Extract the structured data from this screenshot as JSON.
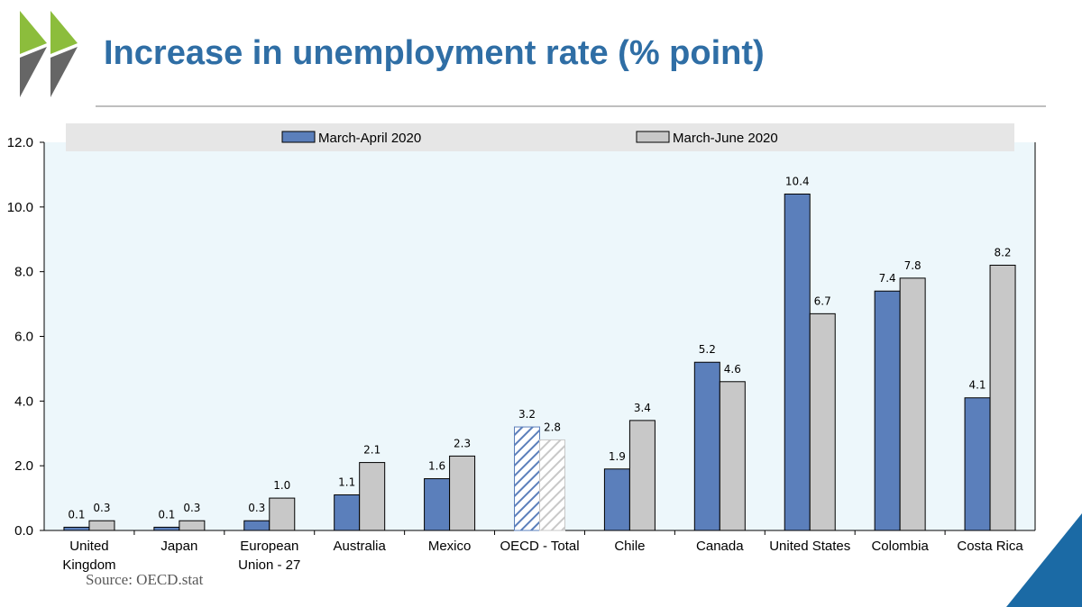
{
  "slide": {
    "title": "Increase in unemployment rate (% point)",
    "source": "Source: OECD.stat"
  },
  "colors": {
    "title": "#2f6ea5",
    "series_1": "#5b7fbb",
    "series_2": "#c8c8c8",
    "plot_background": "#edf7fb",
    "legend_background": "#e6e6e6",
    "logo_light": "#8cbd3c",
    "logo_dark": "#666666",
    "corner_accent": "#1b6aa5"
  },
  "icons": {
    "logo": "oecd-double-chevron-logo",
    "corner": "blue-corner-triangle"
  },
  "chart_data": {
    "type": "bar",
    "title": "Increase in unemployment rate (% point)",
    "xlabel": "",
    "ylabel": "",
    "ylim": [
      0,
      12
    ],
    "yticks": [
      "0.0",
      "2.0",
      "4.0",
      "6.0",
      "8.0",
      "10.0",
      "12.0"
    ],
    "grid": false,
    "legend_position": "top",
    "categories": [
      [
        "United",
        "Kingdom"
      ],
      [
        "Japan"
      ],
      [
        "European",
        "Union - 27"
      ],
      [
        "Australia"
      ],
      [
        "Mexico"
      ],
      [
        "OECD - Total"
      ],
      [
        "Chile"
      ],
      [
        "Canada"
      ],
      [
        "United States"
      ],
      [
        "Colombia"
      ],
      [
        "Costa Rica"
      ]
    ],
    "highlight_category": "OECD - Total",
    "series": [
      {
        "name": "March-April 2020",
        "values": [
          0.1,
          0.1,
          0.3,
          1.1,
          1.6,
          3.2,
          1.9,
          5.2,
          10.4,
          7.4,
          4.1
        ],
        "labels": [
          "0.1",
          "0.1",
          "0.3",
          "1.1",
          "1.6",
          "3.2",
          "1.9",
          "5.2",
          "10.4",
          "7.4",
          "4.1"
        ]
      },
      {
        "name": "March-June 2020",
        "values": [
          0.3,
          0.3,
          1.0,
          2.1,
          2.3,
          2.8,
          3.4,
          4.6,
          6.7,
          7.8,
          8.2
        ],
        "labels": [
          "0.3",
          "0.3",
          "1.0",
          "2.1",
          "2.3",
          "2.8",
          "3.4",
          "4.6",
          "6.7",
          "7.8",
          "8.2"
        ]
      }
    ]
  }
}
